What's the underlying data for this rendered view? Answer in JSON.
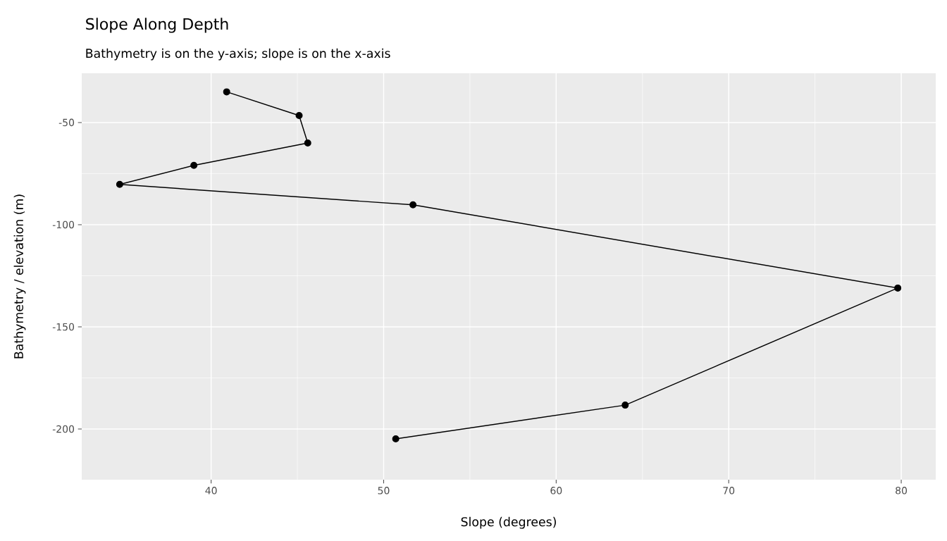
{
  "chart_data": {
    "type": "line",
    "title": "Slope Along Depth",
    "subtitle": "Bathymetry is on the y-axis; slope is on the x-axis",
    "xlabel": "Slope (degrees)",
    "ylabel": "Bathymetry / elevation (m)",
    "x": [
      40.9,
      45.1,
      45.6,
      39.0,
      34.7,
      51.7,
      79.8,
      64.0,
      50.7
    ],
    "values": [
      -35,
      -46.6,
      -60,
      -71,
      -80.3,
      -90.3,
      -131,
      -188.3,
      -204.8
    ],
    "color": "#000000",
    "marker": "circle",
    "line_style": "solid",
    "grid": true,
    "xlim": [
      32.5,
      82
    ],
    "ylim": [
      -224.8,
      -25.9
    ],
    "xticks": [
      40,
      50,
      60,
      70,
      80
    ],
    "yticks": [
      -50,
      -100,
      -150,
      -200
    ]
  }
}
